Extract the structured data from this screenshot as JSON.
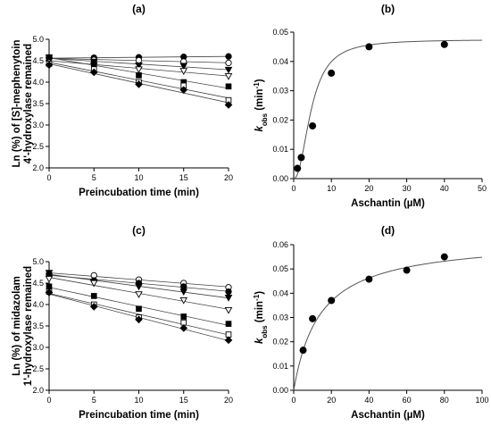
{
  "chart_data": [
    {
      "panel": "(a)",
      "type": "scatter",
      "title": "(a)",
      "xlabel": "Preincubation time (min)",
      "ylabel_lines": [
        "Ln (%) of [S]-mephenytoin",
        "4'-hydroxylase remained"
      ],
      "xlim": [
        0,
        20
      ],
      "ylim": [
        2.0,
        5.0
      ],
      "xticks": [
        0,
        5,
        10,
        15,
        20
      ],
      "yticks": [
        2.0,
        2.5,
        3.0,
        3.5,
        4.0,
        4.5,
        5.0
      ],
      "ytick_decimals": 1,
      "x": [
        0,
        5,
        10,
        15,
        20
      ],
      "series": [
        {
          "marker": "filled-circle",
          "values": [
            4.56,
            4.57,
            4.58,
            4.59,
            4.6
          ]
        },
        {
          "marker": "open-circle",
          "values": [
            4.56,
            4.52,
            4.51,
            4.48,
            4.45
          ]
        },
        {
          "marker": "filled-triangle-down",
          "values": [
            4.57,
            4.48,
            4.39,
            4.38,
            4.29
          ]
        },
        {
          "marker": "open-triangle-down",
          "values": [
            4.52,
            4.39,
            4.3,
            4.26,
            4.14
          ]
        },
        {
          "marker": "filled-square",
          "values": [
            4.58,
            4.43,
            4.16,
            4.0,
            3.9
          ]
        },
        {
          "marker": "open-square",
          "values": [
            4.43,
            4.3,
            4.0,
            3.92,
            3.58
          ]
        },
        {
          "marker": "filled-diamond",
          "values": [
            4.4,
            4.23,
            3.95,
            3.82,
            3.47
          ]
        }
      ]
    },
    {
      "panel": "(b)",
      "type": "scatter",
      "title": "(b)",
      "xlabel": "Aschantin (µM)",
      "ylabel_main": "k",
      "ylabel_sub": "obs",
      "ylabel_unit_pre": " (min",
      "ylabel_unit_sup": "-1",
      "ylabel_unit_post": ")",
      "xlim": [
        0,
        50
      ],
      "ylim": [
        0,
        0.05
      ],
      "xticks": [
        0,
        10,
        20,
        30,
        40,
        50
      ],
      "yticks": [
        0.0,
        0.01,
        0.02,
        0.03,
        0.04,
        0.05
      ],
      "ytick_decimals": 2,
      "x": [
        1,
        2,
        5,
        10,
        20,
        40
      ],
      "values": [
        0.0035,
        0.0072,
        0.018,
        0.036,
        0.045,
        0.0458
      ],
      "fit": {
        "kmax": 0.0475,
        "K": 4.7,
        "n": 2.2
      }
    },
    {
      "panel": "(c)",
      "type": "scatter",
      "title": "(c)",
      "xlabel": "Preincubation time (min)",
      "ylabel_lines": [
        "Ln (%) of midazolam",
        "1'-hydroxylase remained"
      ],
      "xlim": [
        0,
        20
      ],
      "ylim": [
        2.0,
        5.0
      ],
      "xticks": [
        0,
        5,
        10,
        15,
        20
      ],
      "yticks": [
        2.0,
        2.5,
        3.0,
        3.5,
        4.0,
        4.5,
        5.0
      ],
      "ytick_decimals": 1,
      "x": [
        0,
        5,
        10,
        15,
        20
      ],
      "series": [
        {
          "marker": "open-circle",
          "values": [
            4.72,
            4.68,
            4.58,
            4.5,
            4.4
          ]
        },
        {
          "marker": "filled-circle",
          "values": [
            4.7,
            4.56,
            4.5,
            4.42,
            4.3
          ]
        },
        {
          "marker": "filled-triangle-down",
          "values": [
            4.74,
            4.52,
            4.42,
            4.3,
            4.16
          ]
        },
        {
          "marker": "open-triangle-down",
          "values": [
            4.6,
            4.5,
            4.24,
            4.1,
            3.87
          ]
        },
        {
          "marker": "filled-square",
          "values": [
            4.42,
            4.2,
            3.9,
            3.72,
            3.55
          ]
        },
        {
          "marker": "open-square",
          "values": [
            4.3,
            4.0,
            3.7,
            3.58,
            3.3
          ]
        },
        {
          "marker": "filled-diamond",
          "values": [
            4.28,
            3.95,
            3.65,
            3.45,
            3.17
          ]
        }
      ]
    },
    {
      "panel": "(d)",
      "type": "scatter",
      "title": "(d)",
      "xlabel": "Aschantin (µM)",
      "ylabel_main": "k",
      "ylabel_sub": "obs",
      "ylabel_unit_pre": " (min",
      "ylabel_unit_sup": "-1",
      "ylabel_unit_post": ")",
      "xlim": [
        0,
        100
      ],
      "ylim": [
        0,
        0.06
      ],
      "xticks": [
        0,
        20,
        40,
        60,
        80,
        100
      ],
      "yticks": [
        0.0,
        0.01,
        0.02,
        0.03,
        0.04,
        0.05,
        0.06
      ],
      "ytick_decimals": 2,
      "x": [
        5,
        10,
        20,
        40,
        60,
        80
      ],
      "values": [
        0.0165,
        0.0295,
        0.037,
        0.0458,
        0.0495,
        0.055
      ],
      "fit": {
        "kmax": 0.0625,
        "K": 14,
        "n": 1
      }
    }
  ]
}
